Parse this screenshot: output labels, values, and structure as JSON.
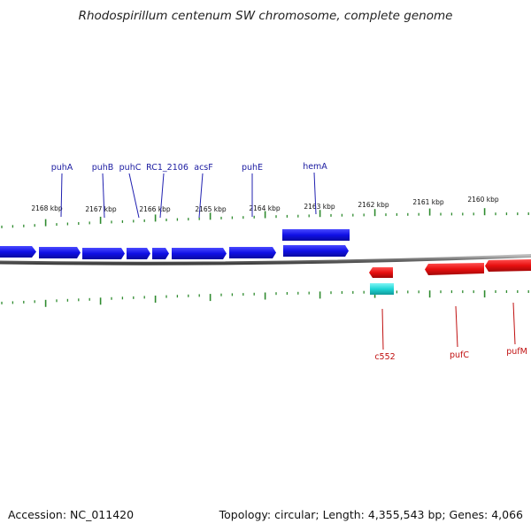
{
  "title": "Rhodospirillum centenum SW chromosome, complete genome",
  "footer": {
    "accession": "Accession: NC_011420",
    "stats": "Topology: circular; Length: 4,355,543 bp; Genes: 4,066"
  },
  "scale_labels": [
    "2168 kbp",
    "2167 kbp",
    "2166 kbp",
    "2165 kbp",
    "2164 kbp",
    "2163 kbp",
    "2162 kbp",
    "2161 kbp",
    "2160 kbp"
  ],
  "genes_forward": [
    {
      "label": "puhA"
    },
    {
      "label": "puhB"
    },
    {
      "label": "puhC"
    },
    {
      "label": "RC1_2106"
    },
    {
      "label": "acsF"
    },
    {
      "label": "puhE"
    },
    {
      "label": "hemA"
    }
  ],
  "genes_reverse": [
    {
      "label": "c552"
    },
    {
      "label": "pufC"
    },
    {
      "label": "pufM"
    }
  ],
  "colors": {
    "forward_gene": "#1515e0",
    "reverse_gene": "#e01010",
    "rna_gene": "#22d8d8",
    "backbone": "#7a7a7a",
    "ticks": "#2e8b2e",
    "forward_label": "#1a1aa0",
    "reverse_label": "#c01010"
  }
}
